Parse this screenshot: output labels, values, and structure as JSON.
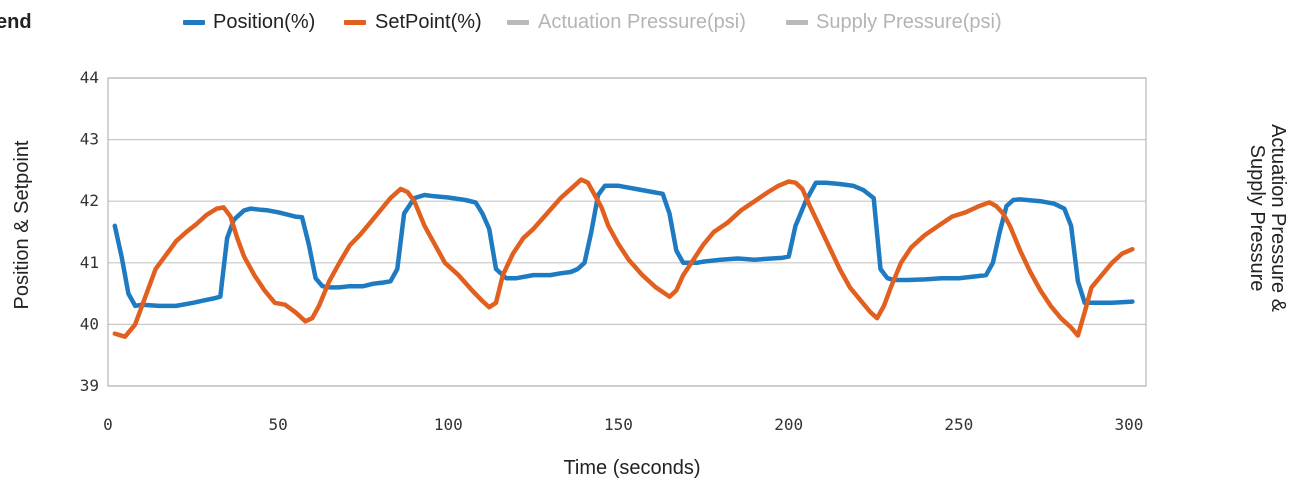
{
  "legend": {
    "title": "end",
    "items": [
      {
        "label": "Position(%)",
        "color": "#1f7bc1",
        "active": true
      },
      {
        "label": "SetPoint(%)",
        "color": "#e2601f",
        "active": true
      },
      {
        "label": "Actuation Pressure(psi)",
        "color": "#b9b9b9",
        "active": false
      },
      {
        "label": "Supply Pressure(psi)",
        "color": "#b9b9b9",
        "active": false
      }
    ]
  },
  "chart_data": {
    "type": "line",
    "xlabel": "Time (seconds)",
    "ylabel": "Position & Setpoint",
    "ylabel_right": [
      "Actuation Pressure &",
      "Supply Pressure"
    ],
    "xlim": [
      0,
      305
    ],
    "ylim": [
      39,
      44
    ],
    "x_ticks": [
      0,
      50,
      100,
      150,
      200,
      250,
      300
    ],
    "y_ticks": [
      39,
      40,
      41,
      42,
      43,
      44
    ],
    "grid": true,
    "series": [
      {
        "name": "Position(%)",
        "color": "#1f7bc1",
        "x": [
          2,
          4,
          6,
          8,
          10,
          15,
          20,
          25,
          29,
          31,
          33,
          35,
          37,
          40,
          42,
          45,
          47,
          50,
          53,
          55,
          57,
          59,
          61,
          63,
          65,
          68,
          71,
          75,
          78,
          81,
          83,
          85,
          87,
          90,
          93,
          96,
          100,
          105,
          108,
          110,
          112,
          114,
          117,
          120,
          125,
          130,
          133,
          136,
          138,
          140,
          142,
          144,
          146,
          150,
          155,
          160,
          163,
          165,
          167,
          169,
          171,
          173,
          175,
          180,
          185,
          190,
          195,
          198,
          200,
          202,
          205,
          208,
          211,
          215,
          219,
          222,
          225,
          227,
          229,
          231,
          233,
          235,
          240,
          245,
          250,
          255,
          258,
          260,
          262,
          264,
          266,
          268,
          270,
          274,
          278,
          281,
          283,
          285,
          287,
          290,
          295,
          301
        ],
        "y": [
          41.6,
          41.1,
          40.5,
          40.3,
          40.32,
          40.3,
          40.3,
          40.35,
          40.4,
          40.42,
          40.45,
          41.4,
          41.7,
          41.85,
          41.88,
          41.86,
          41.85,
          41.82,
          41.78,
          41.75,
          41.74,
          41.3,
          40.75,
          40.62,
          40.6,
          40.6,
          40.62,
          40.62,
          40.66,
          40.68,
          40.7,
          40.9,
          41.8,
          42.05,
          42.1,
          42.08,
          42.06,
          42.02,
          41.98,
          41.8,
          41.55,
          40.9,
          40.75,
          40.75,
          40.8,
          40.8,
          40.83,
          40.85,
          40.9,
          41.0,
          41.5,
          42.1,
          42.25,
          42.25,
          42.2,
          42.15,
          42.12,
          41.8,
          41.2,
          41.0,
          41.0,
          41.0,
          41.02,
          41.05,
          41.07,
          41.05,
          41.07,
          41.08,
          41.1,
          41.6,
          42.0,
          42.3,
          42.3,
          42.28,
          42.25,
          42.18,
          42.05,
          40.9,
          40.75,
          40.72,
          40.72,
          40.72,
          40.73,
          40.75,
          40.75,
          40.78,
          40.8,
          41.0,
          41.5,
          41.92,
          42.02,
          42.03,
          42.02,
          42.0,
          41.96,
          41.88,
          41.6,
          40.7,
          40.35,
          40.35,
          40.35,
          40.37
        ]
      },
      {
        "name": "SetPoint(%)",
        "color": "#e2601f",
        "x": [
          2,
          5,
          8,
          10,
          12,
          14,
          16,
          18,
          20,
          23,
          26,
          29,
          32,
          34,
          36,
          38,
          40,
          43,
          46,
          49,
          52,
          55,
          58,
          60,
          62,
          65,
          68,
          71,
          74,
          77,
          80,
          83,
          86,
          88,
          90,
          93,
          96,
          99,
          103,
          107,
          110,
          112,
          114,
          116,
          119,
          122,
          125,
          129,
          133,
          136,
          139,
          141,
          143,
          145,
          147,
          150,
          153,
          157,
          161,
          165,
          167,
          169,
          172,
          175,
          178,
          182,
          186,
          190,
          194,
          197,
          200,
          202,
          204,
          206,
          209,
          212,
          215,
          218,
          221,
          224,
          226,
          228,
          230,
          233,
          236,
          240,
          244,
          248,
          252,
          256,
          259,
          261,
          263,
          265,
          268,
          271,
          274,
          277,
          280,
          283,
          285,
          287,
          289,
          292,
          295,
          298,
          301
        ],
        "y": [
          39.85,
          39.8,
          40.0,
          40.3,
          40.6,
          40.9,
          41.05,
          41.2,
          41.35,
          41.5,
          41.63,
          41.78,
          41.88,
          41.9,
          41.75,
          41.4,
          41.1,
          40.8,
          40.55,
          40.35,
          40.32,
          40.2,
          40.05,
          40.1,
          40.3,
          40.7,
          41.0,
          41.28,
          41.45,
          41.65,
          41.85,
          42.05,
          42.2,
          42.15,
          42.0,
          41.6,
          41.3,
          41.0,
          40.8,
          40.55,
          40.38,
          40.28,
          40.35,
          40.8,
          41.15,
          41.4,
          41.55,
          41.8,
          42.05,
          42.2,
          42.35,
          42.3,
          42.1,
          41.9,
          41.6,
          41.3,
          41.05,
          40.8,
          40.6,
          40.45,
          40.55,
          40.8,
          41.05,
          41.3,
          41.5,
          41.65,
          41.85,
          42.0,
          42.15,
          42.25,
          42.32,
          42.3,
          42.2,
          41.95,
          41.6,
          41.25,
          40.9,
          40.6,
          40.4,
          40.2,
          40.1,
          40.3,
          40.6,
          41.0,
          41.25,
          41.45,
          41.6,
          41.75,
          41.82,
          41.92,
          41.98,
          41.92,
          41.8,
          41.6,
          41.2,
          40.85,
          40.55,
          40.3,
          40.1,
          39.95,
          39.82,
          40.2,
          40.6,
          40.8,
          41.0,
          41.15,
          41.22
        ]
      }
    ]
  }
}
